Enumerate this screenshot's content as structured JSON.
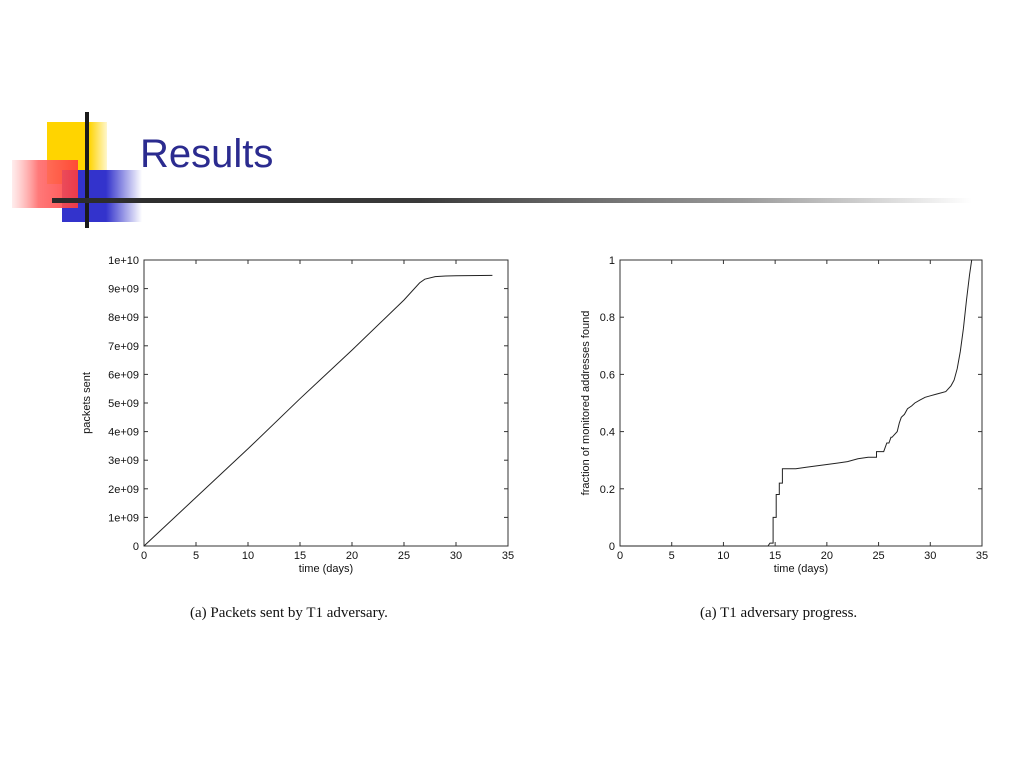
{
  "slide": {
    "title": "Results",
    "logo_colors": {
      "yellow": "#ffd400",
      "blue": "#3333cc",
      "red": "#ff5a5a",
      "line": "#1a1a1a"
    },
    "title_color": "#2b2b8f"
  },
  "chart_data": [
    {
      "type": "line",
      "title": "",
      "caption": "(a) Packets sent by T1 adversary.",
      "xlabel": "time (days)",
      "ylabel": "packets sent",
      "xlim": [
        0,
        35
      ],
      "ylim": [
        0,
        10000000000
      ],
      "x_ticks": [
        0,
        5,
        10,
        15,
        20,
        25,
        30,
        35
      ],
      "x_tick_labels": [
        "0",
        "5",
        "10",
        "15",
        "20",
        "25",
        "30",
        "35"
      ],
      "y_ticks": [
        0,
        1000000000,
        2000000000,
        3000000000,
        4000000000,
        5000000000,
        6000000000,
        7000000000,
        8000000000,
        9000000000,
        10000000000
      ],
      "y_tick_labels": [
        "0",
        "1e+09",
        "2e+09",
        "3e+09",
        "4e+09",
        "5e+09",
        "6e+09",
        "7e+09",
        "8e+09",
        "9e+09",
        "1e+10"
      ],
      "grid": false,
      "line_color": "#222222",
      "series": [
        {
          "x": [
            0,
            5,
            10,
            15,
            20,
            25,
            26.5,
            27,
            28,
            29,
            30,
            33.5
          ],
          "y": [
            0,
            1700000000,
            3400000000,
            5150000000,
            6850000000,
            8600000000,
            9200000000,
            9330000000,
            9420000000,
            9440000000,
            9450000000,
            9460000000
          ]
        }
      ]
    },
    {
      "type": "line",
      "title": "",
      "caption": "(a) T1 adversary progress.",
      "xlabel": "time (days)",
      "ylabel": "fraction of monitored addresses found",
      "xlim": [
        0,
        35
      ],
      "ylim": [
        0,
        1
      ],
      "x_ticks": [
        0,
        5,
        10,
        15,
        20,
        25,
        30,
        35
      ],
      "x_tick_labels": [
        "0",
        "5",
        "10",
        "15",
        "20",
        "25",
        "30",
        "35"
      ],
      "y_ticks": [
        0,
        0.2,
        0.4,
        0.6,
        0.8,
        1
      ],
      "y_tick_labels": [
        "0",
        "0.2",
        "0.4",
        "0.6",
        "0.8",
        "1"
      ],
      "grid": false,
      "line_color": "#222222",
      "series": [
        {
          "x": [
            0,
            14.3,
            14.5,
            14.8,
            14.8,
            15.1,
            15.1,
            15.4,
            15.4,
            15.7,
            15.7,
            17,
            18,
            19,
            20,
            21,
            22,
            23,
            24,
            24.8,
            24.8,
            25.5,
            25.8,
            26,
            26.2,
            26.3,
            26.8,
            27,
            27.2,
            27.5,
            27.8,
            28.2,
            28.5,
            29,
            29.5,
            30,
            30.5,
            31,
            31.5,
            32,
            32.3,
            32.6,
            32.9,
            33.2,
            33.5,
            33.8,
            34
          ],
          "y": [
            0,
            0,
            0.01,
            0.01,
            0.1,
            0.1,
            0.18,
            0.18,
            0.22,
            0.22,
            0.27,
            0.27,
            0.275,
            0.28,
            0.285,
            0.29,
            0.295,
            0.305,
            0.31,
            0.31,
            0.33,
            0.33,
            0.36,
            0.36,
            0.38,
            0.38,
            0.4,
            0.43,
            0.45,
            0.46,
            0.48,
            0.49,
            0.5,
            0.51,
            0.52,
            0.525,
            0.53,
            0.535,
            0.54,
            0.56,
            0.58,
            0.62,
            0.68,
            0.76,
            0.86,
            0.95,
            1.0
          ]
        }
      ]
    }
  ]
}
